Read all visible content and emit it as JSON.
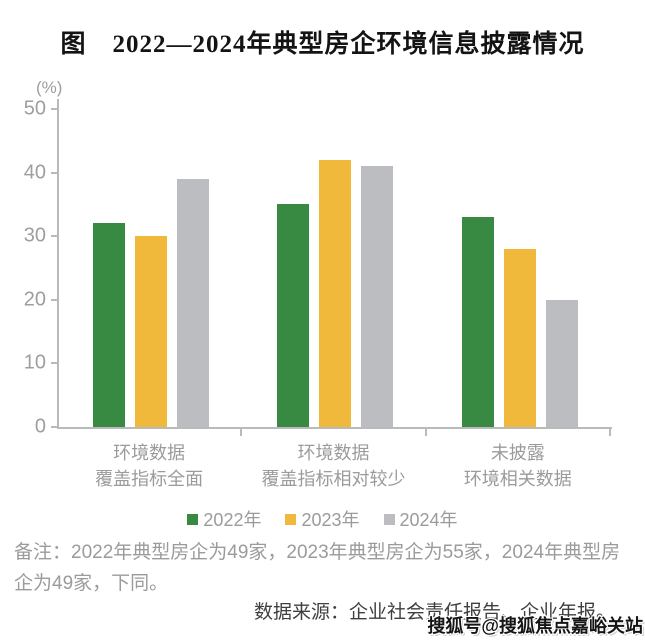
{
  "title": "图　2022—2024年典型房企环境信息披露情况",
  "chart_data": {
    "type": "bar",
    "unit_label": "(%)",
    "categories": [
      "环境数据\n覆盖指标全面",
      "环境数据\n覆盖指标相对较少",
      "未披露\n环境相关数据"
    ],
    "series": [
      {
        "name": "2022年",
        "color": "#388a42",
        "values": [
          32,
          35,
          33
        ]
      },
      {
        "name": "2023年",
        "color": "#f0b93c",
        "values": [
          30,
          42,
          28
        ]
      },
      {
        "name": "2024年",
        "color": "#bcbdc0",
        "values": [
          39,
          41,
          20
        ]
      }
    ],
    "ylim": [
      0,
      50
    ],
    "yticks": [
      0,
      10,
      20,
      30,
      40,
      50
    ],
    "grid": false,
    "legend_position": "bottom",
    "axis_color": "#b9babc"
  },
  "note": "备注：2022年典型房企为49家，2023年典型房企为55家，2024年典型房企为49家，下同。",
  "source": "数据来源：企业社会责任报告、企业年报。",
  "watermark": "搜狐号@搜狐焦点嘉峪关站"
}
